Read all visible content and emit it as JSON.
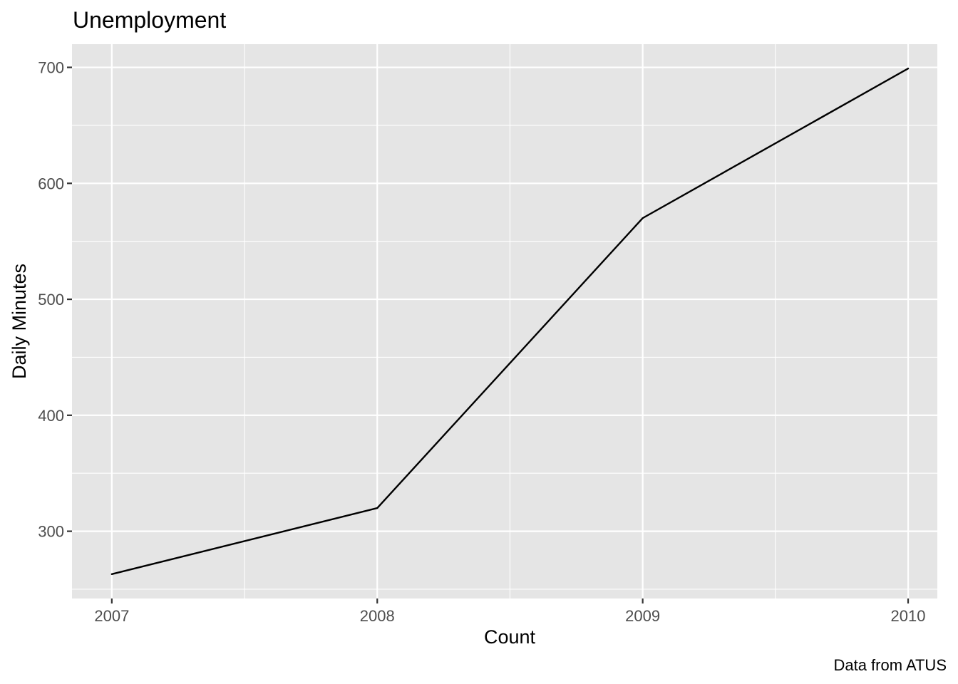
{
  "chart_data": {
    "type": "line",
    "title": "Unemployment",
    "xlabel": "Count",
    "ylabel": "Daily Minutes",
    "caption": "Data from ATUS",
    "x": [
      2007,
      2008,
      2009,
      2010
    ],
    "series": [
      {
        "values": [
          263,
          320,
          570,
          699
        ],
        "color": "#000000"
      }
    ],
    "xlim": [
      2006.85,
      2010.11
    ],
    "ylim": [
      242,
      720
    ],
    "x_ticks": [
      2007,
      2008,
      2009,
      2010
    ],
    "x_tick_labels": [
      "2007",
      "2008",
      "2009",
      "2010"
    ],
    "x_minor_ticks": [
      2007.5,
      2008.5,
      2009.5
    ],
    "y_ticks": [
      300,
      400,
      500,
      600,
      700
    ],
    "y_tick_labels": [
      "300",
      "400",
      "500",
      "600",
      "700"
    ],
    "y_minor_ticks": [
      250,
      350,
      450,
      550,
      650
    ],
    "grid": true,
    "legend": "none",
    "colors": {
      "panel_background": "#e5e5e5",
      "grid": "#ffffff",
      "tick_mark": "#333333",
      "tick_label": "#4d4d4d",
      "line": "#000000"
    }
  }
}
